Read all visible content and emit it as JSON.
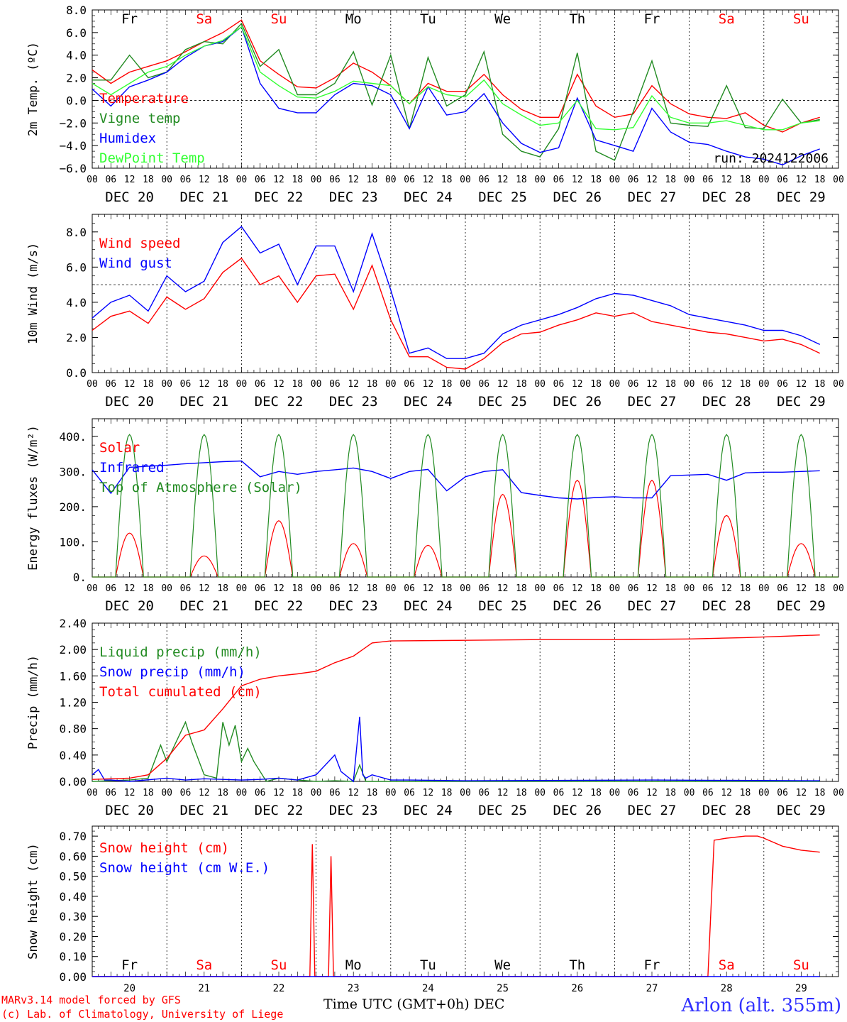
{
  "days": [
    "DEC 20",
    "DEC 21",
    "DEC 22",
    "DEC 23",
    "DEC 24",
    "DEC 25",
    "DEC 26",
    "DEC 27",
    "DEC 28",
    "DEC 29"
  ],
  "weekdays": [
    "Fr",
    "Sa",
    "Su",
    "Mo",
    "Tu",
    "We",
    "Th",
    "Fr",
    "Sa",
    "Su"
  ],
  "weekday_colors": [
    "#000000",
    "#ff0000",
    "#ff0000",
    "#000000",
    "#000000",
    "#000000",
    "#000000",
    "#000000",
    "#ff0000",
    "#ff0000"
  ],
  "hour_ticks": [
    "00",
    "06",
    "12",
    "18"
  ],
  "final_tick": "00",
  "day_numbers": [
    "20",
    "21",
    "22",
    "23",
    "24",
    "25",
    "26",
    "27",
    "28",
    "29"
  ],
  "footer": {
    "model": "MARv3.14 model forced by GFS",
    "lab": "(c) Lab. of Climatology, University of Liege",
    "axis_title": "Time UTC (GMT+0h) DEC",
    "station": "Arlon (alt. 355m)"
  },
  "chart_data": [
    {
      "type": "line",
      "ylabel": "2m Temp. (ºC)",
      "ylim": [
        -6,
        8
      ],
      "yticks": [
        "8.0",
        "6.0",
        "4.0",
        "2.0",
        "0.0",
        "−2.0",
        "−4.0",
        "−6.0"
      ],
      "ytick_values": [
        8,
        6,
        4,
        2,
        0,
        -2,
        -4,
        -6
      ],
      "ref_line": 0,
      "annotation": "run: 2024122006",
      "series": [
        {
          "name": "Temperature",
          "color": "#ff0000",
          "x": [
            0,
            6,
            12,
            18,
            24,
            30,
            36,
            42,
            48,
            54,
            60,
            66,
            72,
            78,
            84,
            90,
            96,
            102,
            108,
            114,
            120,
            126,
            132,
            138,
            144,
            150,
            156,
            162,
            168,
            174,
            180,
            186,
            192,
            198,
            204,
            210,
            216,
            222,
            228,
            234
          ],
          "y": [
            2.7,
            1.5,
            2.5,
            3.0,
            3.5,
            4.3,
            5.2,
            6.0,
            7.1,
            3.5,
            2.3,
            1.2,
            1.1,
            2.0,
            3.3,
            2.5,
            1.3,
            -0.3,
            1.5,
            0.8,
            0.8,
            2.3,
            0.5,
            -0.8,
            -1.5,
            -1.5,
            2.3,
            -0.5,
            -1.5,
            -1.2,
            1.3,
            -0.3,
            -1.2,
            -1.5,
            -1.6,
            -1.1,
            -2.2,
            -2.8,
            -2.0,
            -1.5
          ]
        },
        {
          "name": "Vigne temp",
          "color": "#228b22",
          "x": [
            0,
            6,
            12,
            18,
            24,
            30,
            36,
            42,
            48,
            54,
            60,
            66,
            72,
            78,
            84,
            90,
            96,
            102,
            108,
            114,
            120,
            126,
            132,
            138,
            144,
            150,
            156,
            162,
            168,
            174,
            180,
            186,
            192,
            198,
            204,
            210,
            216,
            222,
            228,
            234
          ],
          "y": [
            1.8,
            1.8,
            4.0,
            2.0,
            2.5,
            4.5,
            5.2,
            5.0,
            6.8,
            3.0,
            4.5,
            0.5,
            0.5,
            1.5,
            4.3,
            -0.4,
            4.0,
            -2.5,
            3.8,
            -0.5,
            0.5,
            4.3,
            -3.0,
            -4.5,
            -5.0,
            -2.5,
            4.2,
            -4.5,
            -5.3,
            -1.0,
            3.5,
            -2.0,
            -2.2,
            -2.3,
            1.3,
            -2.4,
            -2.5,
            0.1,
            -2.0,
            -1.7
          ]
        },
        {
          "name": "Humidex",
          "color": "#0000ff",
          "x": [
            0,
            6,
            12,
            18,
            24,
            30,
            36,
            42,
            48,
            54,
            60,
            66,
            72,
            78,
            84,
            90,
            96,
            102,
            108,
            114,
            120,
            126,
            132,
            138,
            144,
            150,
            156,
            162,
            168,
            174,
            180,
            186,
            192,
            198,
            204,
            210,
            216,
            222,
            228,
            234
          ],
          "y": [
            1.0,
            -0.5,
            1.2,
            1.8,
            2.5,
            3.8,
            4.8,
            5.2,
            6.5,
            1.5,
            -0.7,
            -1.1,
            -1.1,
            0.5,
            1.5,
            1.3,
            0.5,
            -2.5,
            1.2,
            -1.3,
            -1.0,
            0.6,
            -2.0,
            -3.8,
            -4.6,
            -4.2,
            0.2,
            -3.5,
            -4.0,
            -4.5,
            -0.7,
            -2.8,
            -3.7,
            -3.9,
            -4.5,
            -5.0,
            -5.2,
            -5.7,
            -4.9,
            -4.3
          ]
        },
        {
          "name": "DewPoint Temp",
          "color": "#33ff33",
          "x": [
            0,
            6,
            12,
            18,
            24,
            30,
            36,
            42,
            48,
            54,
            60,
            66,
            72,
            78,
            84,
            90,
            96,
            102,
            108,
            114,
            120,
            126,
            132,
            138,
            144,
            150,
            156,
            162,
            168,
            174,
            180,
            186,
            192,
            198,
            204,
            210,
            216,
            222,
            228,
            234
          ],
          "y": [
            1.5,
            0.5,
            1.5,
            2.5,
            3.0,
            4.0,
            4.8,
            5.3,
            6.5,
            2.5,
            1.3,
            0.3,
            0.2,
            0.8,
            1.7,
            1.5,
            1.3,
            -0.3,
            1.2,
            0.5,
            0.3,
            1.8,
            -0.3,
            -1.3,
            -2.2,
            -2.0,
            0.0,
            -2.5,
            -2.6,
            -2.4,
            0.4,
            -1.5,
            -2.0,
            -2.0,
            -1.8,
            -2.2,
            -2.6,
            -2.6,
            -2.0,
            -1.8
          ]
        }
      ]
    },
    {
      "type": "line",
      "ylabel": "10m Wind (m/s)",
      "ylim": [
        0,
        9
      ],
      "yticks": [
        "8.0",
        "6.0",
        "4.0",
        "2.0",
        "0.0"
      ],
      "ytick_values": [
        8,
        6,
        4,
        2,
        0
      ],
      "ref_line": 5,
      "series": [
        {
          "name": "Wind speed",
          "color": "#ff0000",
          "x": [
            0,
            6,
            12,
            18,
            24,
            30,
            36,
            42,
            48,
            54,
            60,
            66,
            72,
            78,
            84,
            90,
            96,
            102,
            108,
            114,
            120,
            126,
            132,
            138,
            144,
            150,
            156,
            162,
            168,
            174,
            180,
            186,
            192,
            198,
            204,
            210,
            216,
            222,
            228,
            234
          ],
          "y": [
            2.4,
            3.2,
            3.5,
            2.8,
            4.3,
            3.6,
            4.2,
            5.7,
            6.5,
            5.0,
            5.5,
            4.0,
            5.5,
            5.6,
            3.6,
            6.1,
            3.0,
            0.9,
            0.9,
            0.3,
            0.2,
            0.8,
            1.7,
            2.2,
            2.3,
            2.7,
            3.0,
            3.4,
            3.2,
            3.4,
            2.9,
            2.7,
            2.5,
            2.3,
            2.2,
            2.0,
            1.8,
            1.9,
            1.6,
            1.1
          ]
        },
        {
          "name": "Wind gust",
          "color": "#0000ff",
          "x": [
            0,
            6,
            12,
            18,
            24,
            30,
            36,
            42,
            48,
            54,
            60,
            66,
            72,
            78,
            84,
            90,
            96,
            102,
            108,
            114,
            120,
            126,
            132,
            138,
            144,
            150,
            156,
            162,
            168,
            174,
            180,
            186,
            192,
            198,
            204,
            210,
            216,
            222,
            228,
            234
          ],
          "y": [
            3.1,
            4.0,
            4.4,
            3.5,
            5.5,
            4.6,
            5.2,
            7.4,
            8.3,
            6.8,
            7.3,
            5.0,
            7.2,
            7.2,
            4.6,
            7.9,
            4.7,
            1.1,
            1.4,
            0.8,
            0.8,
            1.1,
            2.2,
            2.7,
            3.0,
            3.3,
            3.7,
            4.2,
            4.5,
            4.4,
            4.1,
            3.8,
            3.3,
            3.1,
            2.9,
            2.7,
            2.4,
            2.4,
            2.1,
            1.6
          ]
        }
      ]
    },
    {
      "type": "line",
      "ylabel": "Energy fluxes (W/m²)",
      "ylim": [
        0,
        450
      ],
      "yticks": [
        "400.",
        "300.",
        "200.",
        "100.",
        "0."
      ],
      "ytick_values": [
        400,
        300,
        200,
        100,
        0
      ],
      "series": [
        {
          "name": "Solar",
          "color": "#ff0000",
          "peaks": [
            125,
            60,
            160,
            95,
            90,
            235,
            275,
            275,
            175,
            95
          ]
        },
        {
          "name": "Infrared",
          "color": "#0000ff",
          "x": [
            0,
            6,
            12,
            18,
            24,
            30,
            36,
            42,
            48,
            54,
            60,
            66,
            72,
            78,
            84,
            90,
            96,
            102,
            108,
            114,
            120,
            126,
            132,
            138,
            144,
            150,
            156,
            162,
            168,
            174,
            180,
            186,
            192,
            198,
            204,
            210,
            216,
            222,
            228,
            234
          ],
          "y": [
            305,
            238,
            312,
            315,
            318,
            322,
            325,
            328,
            330,
            285,
            300,
            292,
            300,
            305,
            310,
            300,
            280,
            300,
            306,
            245,
            285,
            300,
            305,
            240,
            232,
            225,
            222,
            226,
            228,
            225,
            225,
            288,
            290,
            292,
            275,
            296,
            298,
            298,
            300,
            302
          ]
        },
        {
          "name": "Top of Atmosphere (Solar)",
          "color": "#228b22",
          "peaks": [
            405,
            405,
            405,
            405,
            405,
            405,
            405,
            405,
            405,
            405
          ]
        }
      ]
    },
    {
      "type": "line",
      "ylabel": "Precip (mm/h)",
      "ylim": [
        0,
        2.4
      ],
      "yticks": [
        "2.40",
        "2.00",
        "1.60",
        "1.20",
        "0.80",
        "0.40",
        "0.00"
      ],
      "ytick_values": [
        2.4,
        2.0,
        1.6,
        1.2,
        0.8,
        0.4,
        0.0
      ],
      "series": [
        {
          "name": "Liquid precip (mm/h)",
          "color": "#228b22",
          "x": [
            0,
            12,
            18,
            22,
            24,
            26,
            30,
            32,
            36,
            40,
            42,
            44,
            46,
            48,
            50,
            52,
            56,
            60,
            66,
            72,
            78,
            84,
            86,
            88,
            90,
            96,
            120,
            180,
            234
          ],
          "y": [
            0.0,
            0.02,
            0.05,
            0.55,
            0.3,
            0.5,
            0.9,
            0.6,
            0.1,
            0.05,
            0.9,
            0.55,
            0.85,
            0.3,
            0.5,
            0.3,
            0.0,
            0.05,
            0.02,
            0.0,
            0.01,
            0.0,
            0.25,
            0.0,
            0.0,
            0.0,
            0.0,
            0.0,
            0.0
          ]
        },
        {
          "name": "Snow precip (mm/h)",
          "color": "#0000ff",
          "x": [
            0,
            2,
            4,
            6,
            12,
            24,
            30,
            36,
            48,
            54,
            60,
            66,
            72,
            78,
            80,
            84,
            86,
            87,
            88,
            90,
            96,
            102,
            120,
            180,
            234
          ],
          "y": [
            0.1,
            0.18,
            0.02,
            0.02,
            0.0,
            0.05,
            0.02,
            0.04,
            0.02,
            0.03,
            0.05,
            0.02,
            0.1,
            0.4,
            0.15,
            0.0,
            0.98,
            0.1,
            0.05,
            0.1,
            0.02,
            0.02,
            0.01,
            0.02,
            0.01
          ]
        },
        {
          "name": "Total cumulated (cm)",
          "color": "#ff0000",
          "x": [
            0,
            12,
            18,
            24,
            30,
            36,
            42,
            48,
            54,
            60,
            66,
            72,
            78,
            84,
            90,
            96,
            120,
            144,
            168,
            192,
            210,
            234
          ],
          "y": [
            0.03,
            0.05,
            0.1,
            0.35,
            0.7,
            0.78,
            1.1,
            1.45,
            1.55,
            1.6,
            1.63,
            1.67,
            1.8,
            1.9,
            2.1,
            2.13,
            2.14,
            2.15,
            2.15,
            2.16,
            2.18,
            2.22
          ]
        }
      ]
    },
    {
      "type": "line",
      "ylabel": "Snow height (cm)",
      "ylim": [
        0,
        0.75
      ],
      "yticks": [
        "0.70",
        "0.60",
        "0.50",
        "0.40",
        "0.30",
        "0.20",
        "0.10",
        "0.00"
      ],
      "ytick_values": [
        0.7,
        0.6,
        0.5,
        0.4,
        0.3,
        0.2,
        0.1,
        0.0
      ],
      "series": [
        {
          "name": "Snow height (cm)",
          "color": "#ff0000",
          "x": [
            0,
            70,
            70.8,
            71.6,
            74,
            76,
            76.8,
            77.6,
            198,
            200,
            204,
            210,
            214,
            216,
            222,
            228,
            234
          ],
          "y": [
            0,
            0,
            0.66,
            0,
            0,
            0,
            0.6,
            0,
            0,
            0.68,
            0.69,
            0.7,
            0.7,
            0.69,
            0.65,
            0.63,
            0.62
          ]
        },
        {
          "name": "Snow height (cm W.E.)",
          "color": "#0000ff",
          "x": [
            0,
            234
          ],
          "y": [
            0,
            0
          ]
        }
      ]
    }
  ]
}
